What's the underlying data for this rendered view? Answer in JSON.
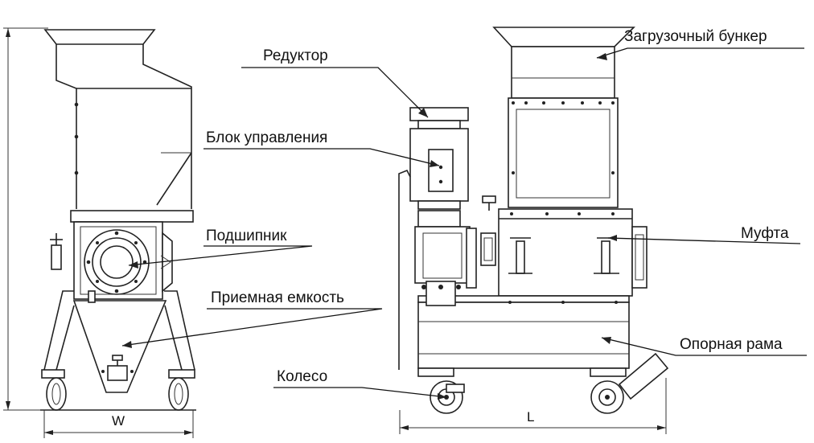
{
  "labels": {
    "reducer": "Редуктор",
    "hopper": "Загрузочный бункер",
    "control_unit": "Блок управления",
    "bearing": "Подшипник",
    "coupling": "Муфта",
    "receiver": "Приемная емкость",
    "frame": "Опорная рама",
    "wheel": "Колесо"
  },
  "dimensions": {
    "width": "W",
    "length": "L"
  }
}
